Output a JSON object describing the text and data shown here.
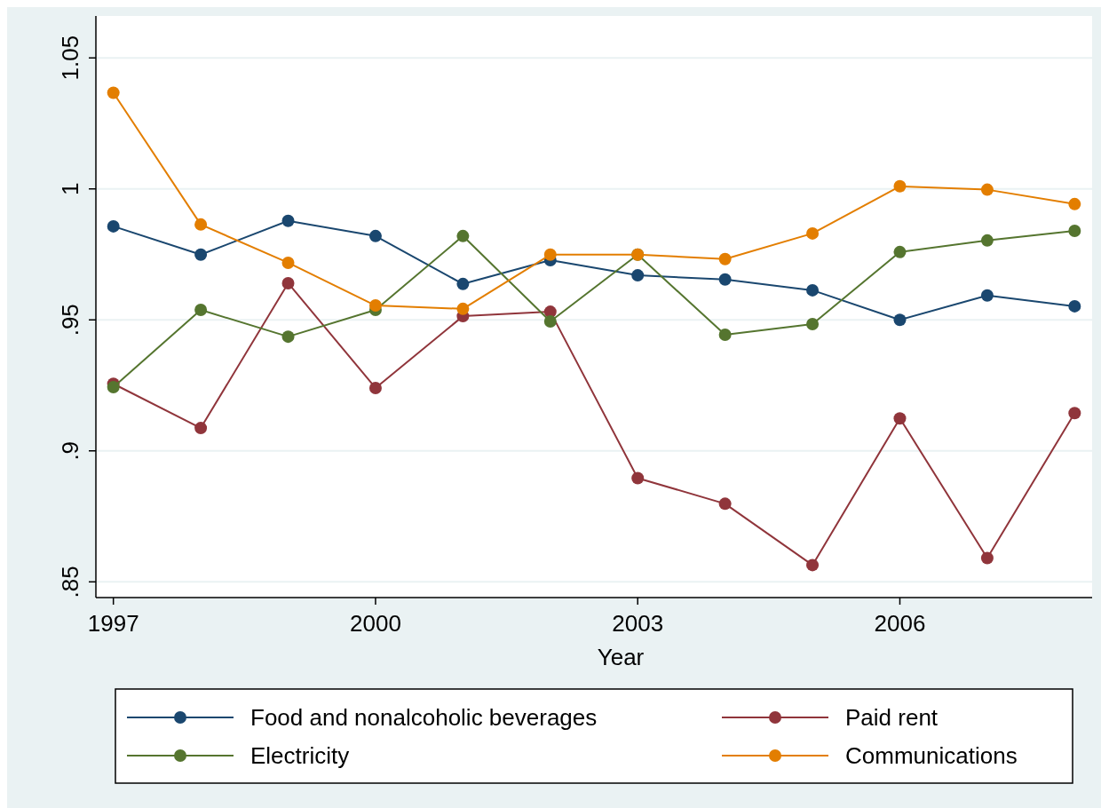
{
  "chart_data": {
    "type": "line",
    "xlabel": "Year",
    "x": [
      1997,
      1998,
      1999,
      2000,
      2001,
      2002,
      2003,
      2004,
      2005,
      2006,
      2007,
      2008
    ],
    "xlim": [
      1996.8,
      2008.2
    ],
    "xticks": [
      1997,
      2000,
      2003,
      2006
    ],
    "ylim": [
      0.844,
      1.066
    ],
    "yticks": [
      {
        "value": 0.85,
        "label": ".85"
      },
      {
        "value": 0.9,
        "label": ".9"
      },
      {
        "value": 0.95,
        "label": ".95"
      },
      {
        "value": 1,
        "label": "1"
      },
      {
        "value": 1.05,
        "label": "1.05"
      }
    ],
    "grid": "y",
    "marker": "circle",
    "line_style": "solid",
    "legend": "bottom",
    "series": [
      {
        "name": "Food and nonalcoholic beverages",
        "color": "#1a476f",
        "values": [
          0.9857,
          0.9749,
          0.9878,
          0.982,
          0.9637,
          0.9728,
          0.967,
          0.9654,
          0.9613,
          0.95,
          0.9593,
          0.9552
        ]
      },
      {
        "name": "Paid rent",
        "color": "#90353b",
        "values": [
          0.9256,
          0.9087,
          0.964,
          0.924,
          0.9514,
          0.9531,
          0.8896,
          0.8798,
          0.8564,
          0.9124,
          0.8591,
          0.9144
        ]
      },
      {
        "name": "Electricity",
        "color": "#55752f",
        "values": [
          0.9243,
          0.9538,
          0.9436,
          0.9538,
          0.982,
          0.9494,
          0.9749,
          0.9443,
          0.9484,
          0.9759,
          0.9803,
          0.984
        ]
      },
      {
        "name": "Communications",
        "color": "#e37e00",
        "values": [
          1.0367,
          0.9864,
          0.9718,
          0.9555,
          0.9542,
          0.9749,
          0.9749,
          0.9732,
          0.983,
          1.001,
          0.9997,
          0.9942
        ]
      }
    ]
  }
}
